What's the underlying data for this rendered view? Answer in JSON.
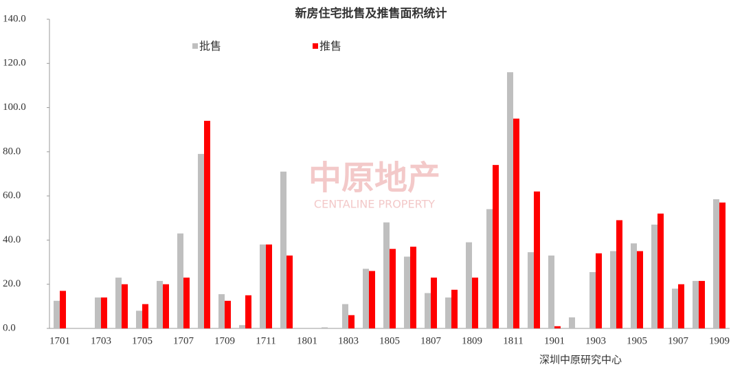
{
  "chart_data": {
    "type": "bar",
    "title": "新房住宅批售及推售面积统计",
    "categories": [
      "1701",
      null,
      "1703",
      null,
      "1705",
      null,
      "1707",
      null,
      "1709",
      null,
      "1711",
      null,
      "1801",
      null,
      "1803",
      null,
      "1805",
      null,
      "1807",
      null,
      "1809",
      null,
      "1811",
      null,
      "1901",
      null,
      "1903",
      null,
      "1905",
      null,
      "1907",
      null,
      "1909"
    ],
    "series": [
      {
        "name": "批售",
        "color": "#bfbfbf",
        "values": [
          12.5,
          0,
          14,
          23,
          8,
          21.5,
          43,
          79,
          15.5,
          1.5,
          38,
          71,
          0,
          0.5,
          11,
          27,
          48,
          32.5,
          16,
          14,
          39,
          54,
          116,
          34.5,
          33,
          5,
          25.5,
          35,
          38.5,
          47,
          18,
          21.5,
          58.5
        ]
      },
      {
        "name": "推售",
        "color": "#ff0000",
        "values": [
          17,
          0,
          14,
          20,
          11,
          20,
          23,
          94,
          12.5,
          15,
          38,
          33,
          0,
          0,
          6,
          26,
          36,
          37,
          23,
          17.5,
          23,
          74,
          95,
          62,
          1,
          0,
          34,
          49,
          35,
          52,
          20,
          21.5,
          57
        ]
      }
    ],
    "ylim": [
      0,
      140
    ],
    "yticks": [
      {
        "value": 0,
        "label": "0.0"
      },
      {
        "value": 20,
        "label": "20.0"
      },
      {
        "value": 40,
        "label": "40.0"
      },
      {
        "value": 60,
        "label": "60.0"
      },
      {
        "value": 80,
        "label": "80.0"
      },
      {
        "value": 100,
        "label": "100.0"
      },
      {
        "value": 120,
        "label": "120.0"
      },
      {
        "value": 140,
        "label": "140.0"
      }
    ],
    "grid": false,
    "annotation": "深圳中原研究中心",
    "watermark": {
      "name": "中原地产",
      "english": "CENTALINE PROPERTY"
    }
  }
}
